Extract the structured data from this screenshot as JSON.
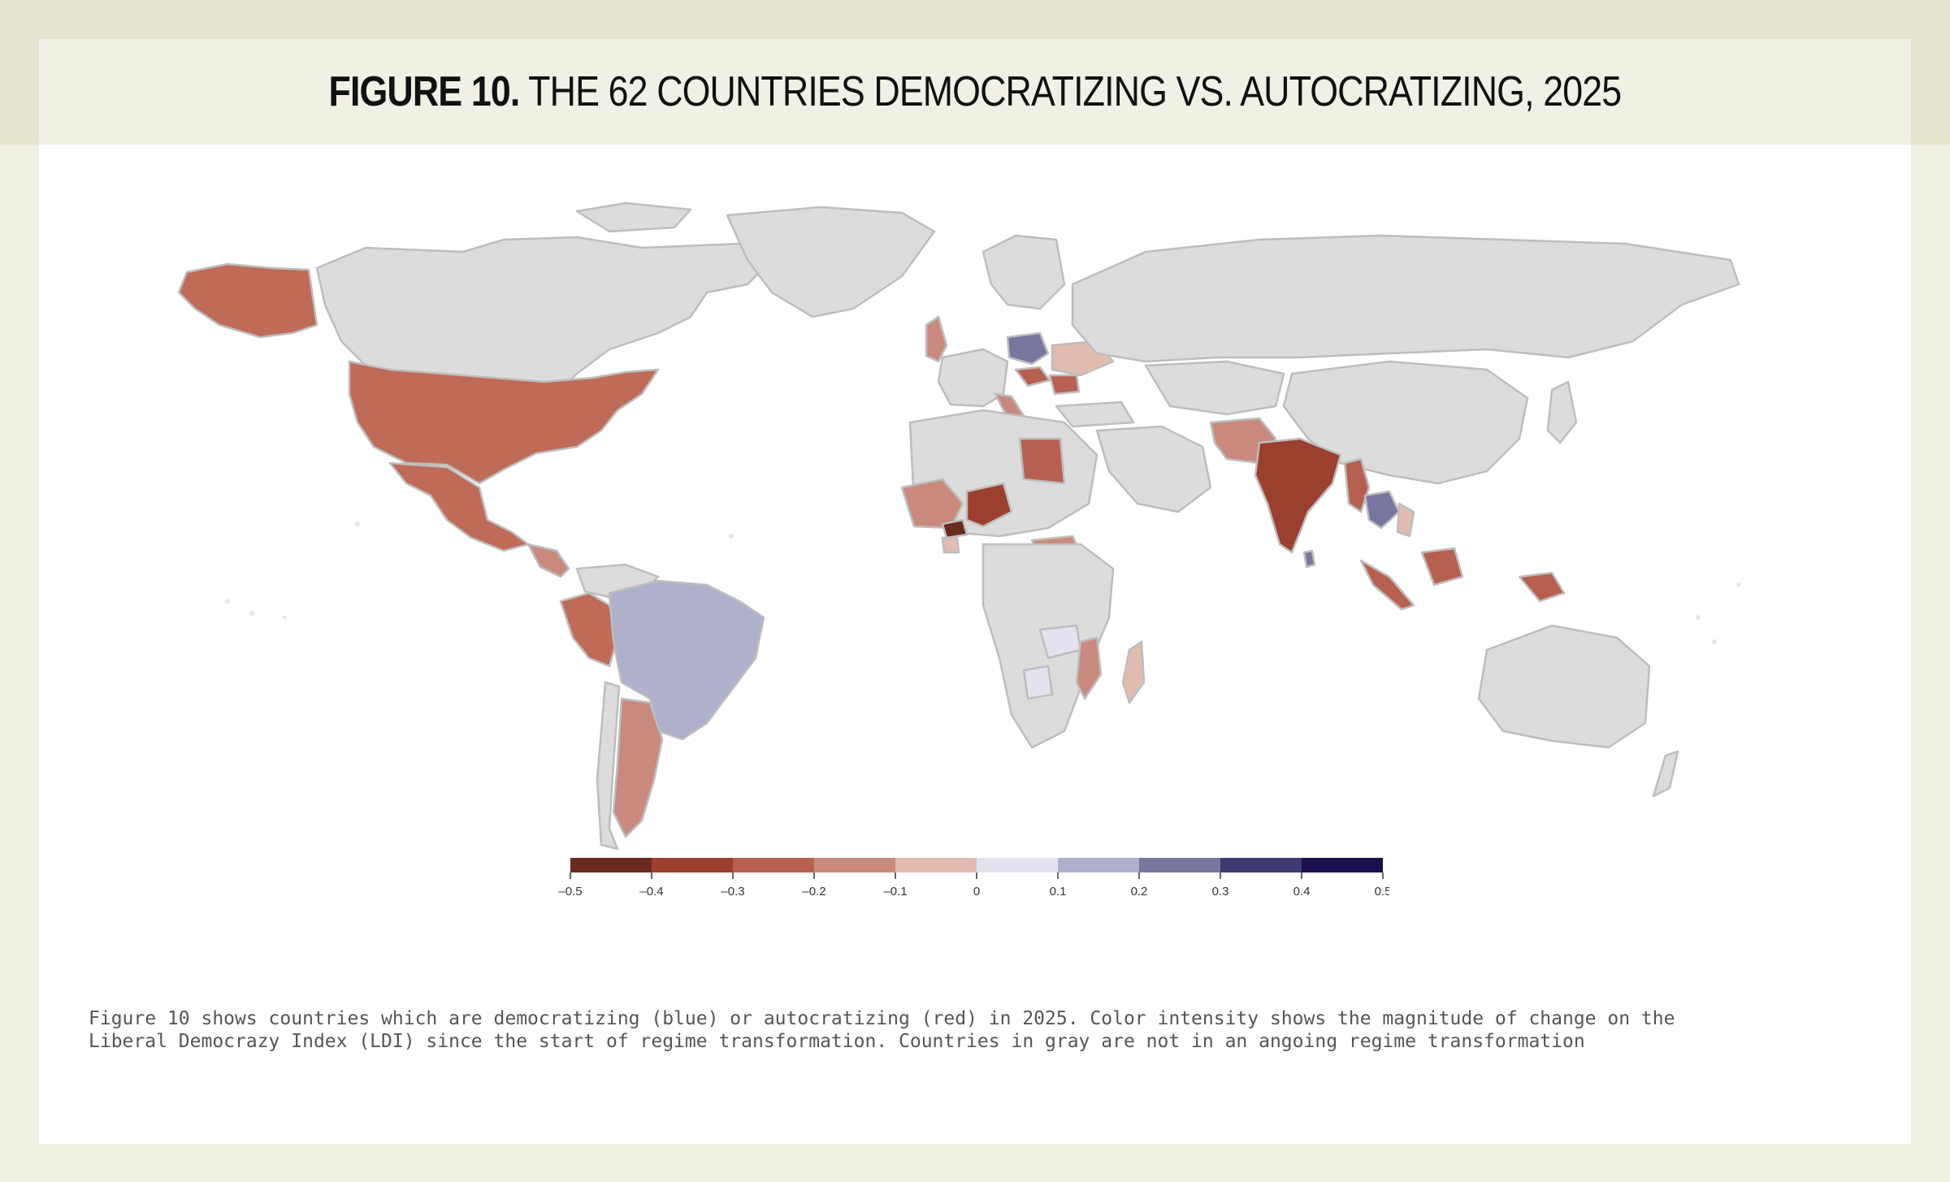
{
  "title": {
    "figure_label": "FIGURE 10.",
    "text": "THE 62 COUNTRIES DEMOCRATIZING VS. AUTOCRATIZING, 2025"
  },
  "colors": {
    "background": "#efefe3",
    "header_band": "#e6e4d0",
    "neutral_land": "#dcdcdc",
    "legend_bins": [
      "#6b2a1f",
      "#9b3f2e",
      "#b8604f",
      "#c98a7d",
      "#e2bcb1",
      "#e3e3ef",
      "#aeb0cc",
      "#76769e",
      "#3f3a72",
      "#1b0f4e"
    ]
  },
  "legend": {
    "ticks": [
      "-0.5",
      "-0.4",
      "-0.3",
      "-0.2",
      "-0.1",
      "0",
      "0.1",
      "0.2",
      "0.3",
      "0.4",
      "0.5"
    ]
  },
  "caption": {
    "line1": "Figure 10 shows countries which are democratizing (blue) or autocratizing (red) in 2025. Color intensity shows the magnitude of change on the",
    "line2": "Liberal Democrazy Index (LDI) since the start of regime transformation. Countries in gray are not in an angoing regime transformation"
  }
}
